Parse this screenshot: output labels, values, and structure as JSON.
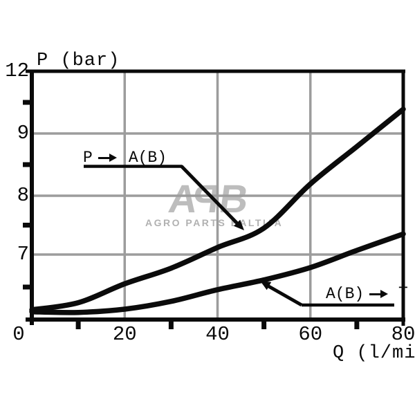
{
  "titles": {
    "y_axis_title": "P (bar)",
    "x_axis_title": "Q (l/min)"
  },
  "axes": {
    "y_labels": [
      "12",
      "9",
      "8",
      "7"
    ],
    "y_label_values": [
      12,
      9,
      8,
      7
    ],
    "x_labels": [
      "0",
      "20",
      "40",
      "60",
      "80"
    ],
    "x_label_values": [
      0,
      20,
      40,
      60,
      80
    ],
    "x_minor_ticks": [
      10,
      30,
      50,
      70
    ],
    "y_minor_ticks": [
      10.5,
      8.5,
      7.5,
      6.5
    ],
    "y_gridline_values": [
      9,
      8,
      7
    ],
    "x_gridline_values": [
      20,
      40,
      60
    ]
  },
  "annotations": {
    "upper_from": "P",
    "upper_to": "A(B)",
    "lower_from": "A(B)",
    "lower_to": "T"
  },
  "watermark": {
    "letters": [
      "A",
      "P",
      "B"
    ],
    "subtext": "AGRO PARTS BALTIJA"
  },
  "colors": {
    "curve": "#0b0b0b",
    "grid": "#9c9c9c",
    "frame": "#0a0a0a",
    "watermark_logo": "#bdbdbd",
    "watermark_text": "#b1b1b1"
  },
  "chart_data": {
    "type": "line",
    "title": "",
    "xlabel": "Q (l/min)",
    "ylabel": "P (bar)",
    "x_range": [
      0,
      80
    ],
    "x_tick_labels": [
      0,
      20,
      40,
      60,
      80
    ],
    "y_tick_labels": [
      12,
      9,
      8,
      7
    ],
    "y_scale_note": "non-linear printed scale: equal spacing between labels 7, 8, 9 and 12; top frame line = 12",
    "grid": true,
    "legend_position": "inline-callouts",
    "series": [
      {
        "name": "P -> A(B)",
        "points": [
          [
            0,
            6.15
          ],
          [
            10,
            6.26
          ],
          [
            20,
            6.55
          ],
          [
            30,
            6.79
          ],
          [
            40,
            7.12
          ],
          [
            50,
            7.45
          ],
          [
            60,
            8.19
          ],
          [
            70,
            8.79
          ],
          [
            80,
            10.17
          ]
        ]
      },
      {
        "name": "A(B) -> T",
        "points": [
          [
            0,
            6.12
          ],
          [
            10,
            6.11
          ],
          [
            20,
            6.16
          ],
          [
            30,
            6.28
          ],
          [
            40,
            6.46
          ],
          [
            50,
            6.61
          ],
          [
            60,
            6.8
          ],
          [
            70,
            7.07
          ],
          [
            80,
            7.35
          ]
        ]
      }
    ]
  }
}
